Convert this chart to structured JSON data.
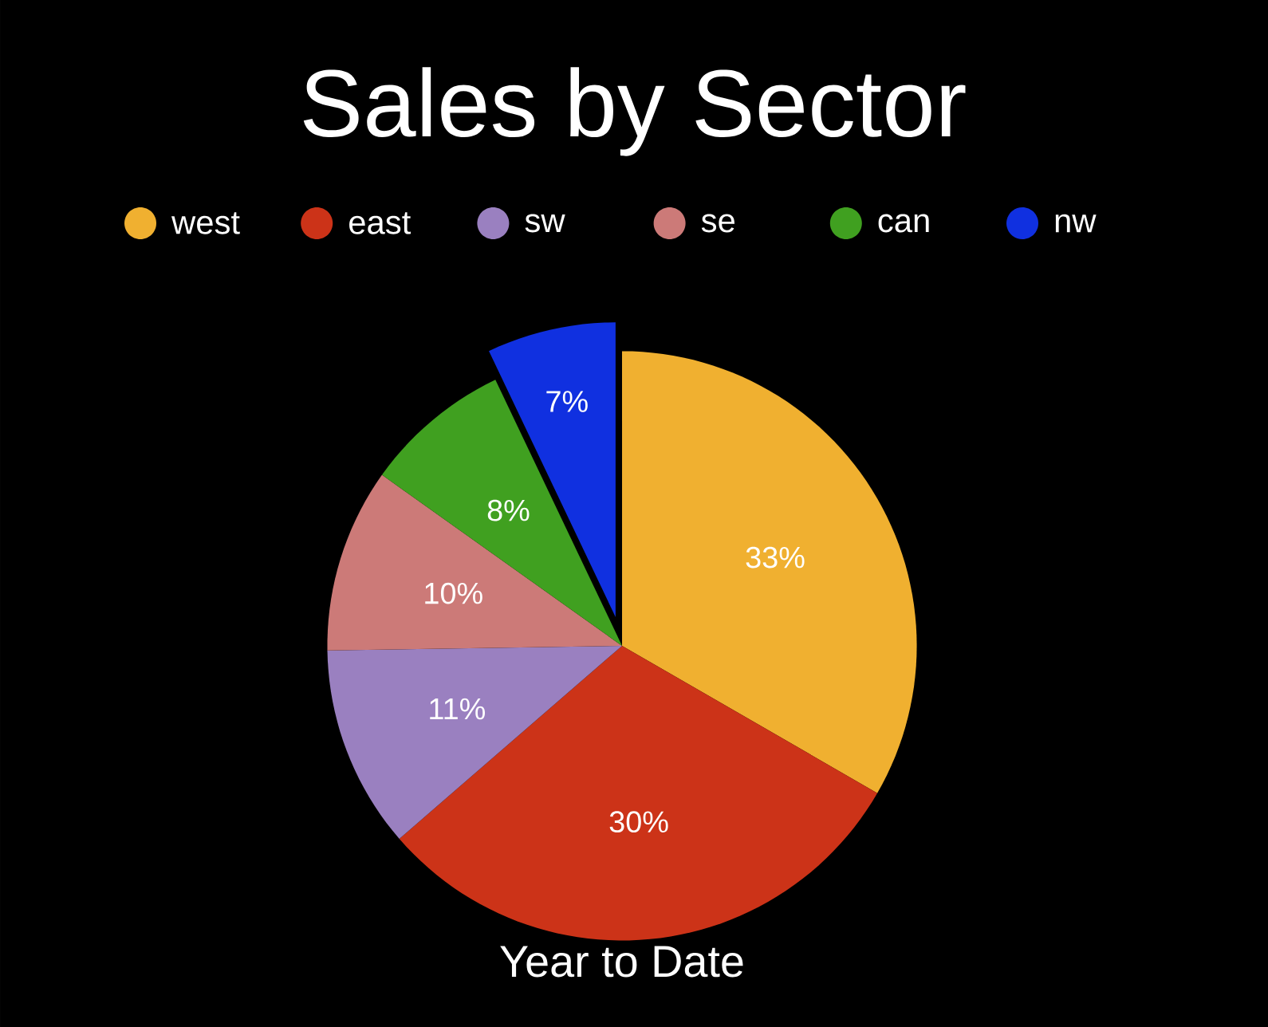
{
  "chart_data": {
    "type": "pie",
    "title": "Sales by Sector",
    "categories": [
      "west",
      "east",
      "sw",
      "se",
      "can",
      "nw"
    ],
    "values": [
      33,
      30,
      11,
      10,
      8,
      7
    ],
    "value_labels": [
      "33%",
      "30%",
      "11%",
      "10%",
      "8%",
      "7%"
    ],
    "colors": [
      "#f0b030",
      "#cc3318",
      "#9a80c0",
      "#cc7a78",
      "#40a020",
      "#1030e0"
    ],
    "legend": "top",
    "annotations": [
      "Year to Date"
    ]
  }
}
